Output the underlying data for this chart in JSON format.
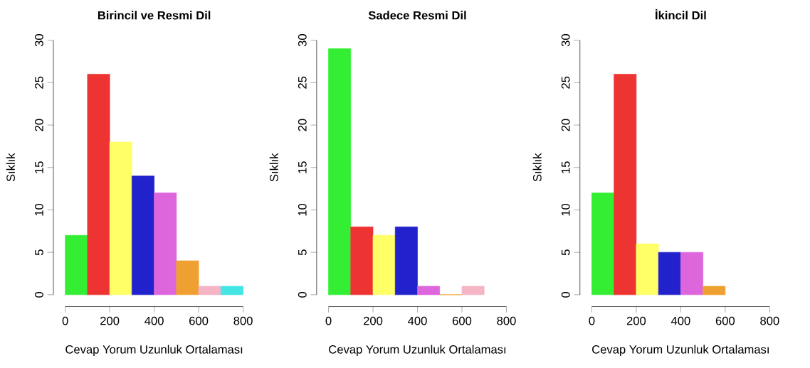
{
  "chart_data": [
    {
      "type": "histogram",
      "title": "Birincil ve Resmi Dil",
      "xlabel": "Cevap Yorum Uzunluk Ortalaması",
      "ylabel": "Sıklık",
      "bins": [
        0,
        100,
        200,
        300,
        400,
        500,
        600,
        700,
        800
      ],
      "values": [
        7,
        26,
        18,
        14,
        12,
        4,
        1,
        1
      ],
      "colors": [
        "#33ee33",
        "#ee3333",
        "#ffff66",
        "#2222cc",
        "#dd66dd",
        "#f0a030",
        "#f5b5c5",
        "#44e5e5"
      ],
      "xlim": [
        0,
        800
      ],
      "ylim": [
        0,
        30
      ],
      "xticks": [
        0,
        200,
        400,
        600,
        800
      ],
      "yticks": [
        0,
        5,
        10,
        15,
        20,
        25,
        30
      ]
    },
    {
      "type": "histogram",
      "title": "Sadece Resmi Dil",
      "xlabel": "Cevap Yorum Uzunluk Ortalaması",
      "ylabel": "Sıklık",
      "bins": [
        0,
        100,
        200,
        300,
        400,
        500,
        600,
        700
      ],
      "values": [
        29,
        8,
        7,
        8,
        1,
        0,
        1
      ],
      "colors": [
        "#33ee33",
        "#ee3333",
        "#ffff66",
        "#2222cc",
        "#dd66dd",
        "#f0a030",
        "#f5b5c5"
      ],
      "xlim": [
        0,
        800
      ],
      "ylim": [
        0,
        30
      ],
      "xticks": [
        0,
        200,
        400,
        600,
        800
      ],
      "yticks": [
        0,
        5,
        10,
        15,
        20,
        25,
        30
      ]
    },
    {
      "type": "histogram",
      "title": "İkincil Dil",
      "xlabel": "Cevap Yorum Uzunluk Ortalaması",
      "ylabel": "Sıklık",
      "bins": [
        0,
        100,
        200,
        300,
        400,
        500,
        600
      ],
      "values": [
        12,
        26,
        6,
        5,
        5,
        1
      ],
      "colors": [
        "#33ee33",
        "#ee3333",
        "#ffff66",
        "#2222cc",
        "#dd66dd",
        "#f0a030"
      ],
      "xlim": [
        0,
        800
      ],
      "ylim": [
        0,
        30
      ],
      "xticks": [
        0,
        200,
        400,
        600,
        800
      ],
      "yticks": [
        0,
        5,
        10,
        15,
        20,
        25,
        30
      ]
    }
  ]
}
